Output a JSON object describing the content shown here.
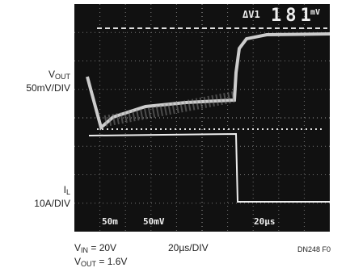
{
  "left_labels": {
    "vout": {
      "symbol": "V",
      "subscript": "OUT",
      "scale": "50mV/DIV"
    },
    "il": {
      "symbol": "I",
      "subscript": "L",
      "scale": "10A/DIV"
    }
  },
  "scope": {
    "cursor_label": "ΔV1",
    "readout": "181",
    "readout_unit": "mV",
    "ch1": "50m",
    "ch2": "50mV",
    "timebase": "20µs"
  },
  "footer": {
    "vin": {
      "symbol": "V",
      "subscript": "IN",
      "value": "= 20V"
    },
    "vout": {
      "symbol": "V",
      "subscript": "OUT",
      "value": "= 1.6V"
    },
    "time_div": "20µs/DIV",
    "figure_id": "DN248 F0"
  }
}
